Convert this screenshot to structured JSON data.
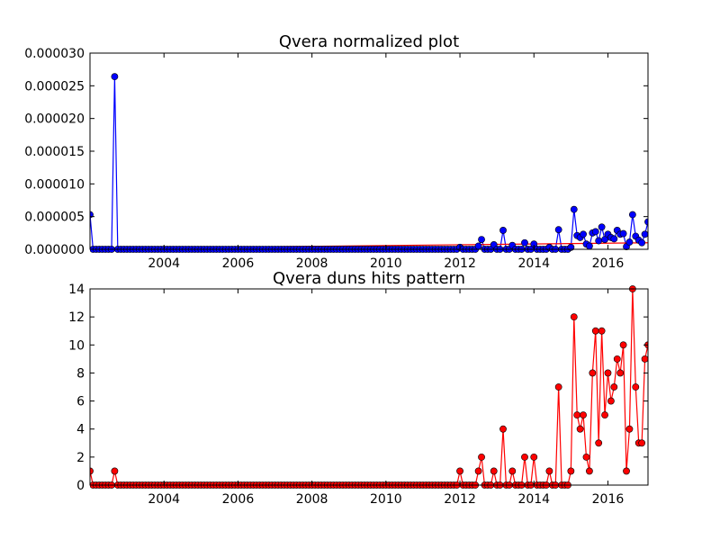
{
  "chart_data": [
    {
      "type": "line",
      "title": "Qvera normalized plot",
      "xlabel": "",
      "ylabel": "",
      "x_tick_labels": [
        "2004",
        "2006",
        "2008",
        "2010",
        "2012",
        "2014",
        "2016"
      ],
      "y_tick_labels": [
        "0.000000",
        "0.000005",
        "0.000010",
        "0.000015",
        "0.000020",
        "0.000025",
        "0.000030"
      ],
      "xlim": [
        "2002-01-01",
        "2017-02-01"
      ],
      "ylim": [
        0,
        3e-05
      ],
      "grid": false,
      "line_color": "#0000ff",
      "marker_color": "#0000ff",
      "trend_color": "#ff0000",
      "series": [
        {
          "x": [
            "2002-01",
            "2002-02",
            "2002-03",
            "2002-04",
            "2002-05",
            "2002-06",
            "2002-07",
            "2002-08",
            "2002-09",
            "2002-10",
            "2002-11",
            "2002-12",
            "2003-01",
            "2012-01",
            "2012-07",
            "2012-08",
            "2012-12",
            "2013-01",
            "2013-03",
            "2013-06",
            "2013-10",
            "2014-01",
            "2014-04",
            "2014-06",
            "2014-09",
            "2014-11",
            "2015-01",
            "2015-02",
            "2015-03",
            "2015-04",
            "2015-05",
            "2015-06",
            "2015-07",
            "2015-08",
            "2015-09",
            "2015-10",
            "2015-11",
            "2015-12",
            "2016-01",
            "2016-02",
            "2016-03",
            "2016-04",
            "2016-05",
            "2016-06",
            "2016-07",
            "2016-08",
            "2016-09",
            "2016-10",
            "2016-11",
            "2016-12",
            "2017-01",
            "2017-02"
          ],
          "values": [
            5.3e-06,
            0,
            0,
            0,
            0,
            0,
            0,
            0,
            2.64e-05,
            0,
            0,
            0,
            0,
            3e-07,
            5e-07,
            1.5e-06,
            7e-07,
            0,
            2.9e-06,
            6e-07,
            1e-06,
            8e-07,
            0,
            3e-07,
            3e-06,
            0,
            3e-07,
            6.1e-06,
            2.1e-06,
            1.8e-06,
            2.3e-06,
            8e-07,
            5e-07,
            2.5e-06,
            2.7e-06,
            1.3e-06,
            3.4e-06,
            1.5e-06,
            2.3e-06,
            1.8e-06,
            1.6e-06,
            2.9e-06,
            2.3e-06,
            2.4e-06,
            4e-07,
            1.1e-06,
            5.3e-06,
            2e-06,
            1.4e-06,
            1e-06,
            2.3e-06,
            4.2e-06
          ]
        }
      ],
      "trend": {
        "x": [
          "2002-01",
          "2017-02"
        ],
        "values": [
          1e-07,
          1e-06
        ]
      }
    },
    {
      "type": "line",
      "title": "Qvera duns hits pattern",
      "xlabel": "",
      "ylabel": "",
      "x_tick_labels": [
        "2004",
        "2006",
        "2008",
        "2010",
        "2012",
        "2014",
        "2016"
      ],
      "y_tick_labels": [
        "0",
        "2",
        "4",
        "6",
        "8",
        "10",
        "12",
        "14"
      ],
      "xlim": [
        "2002-01-01",
        "2017-02-01"
      ],
      "ylim": [
        0,
        14
      ],
      "grid": false,
      "line_color": "#ff0000",
      "marker_color": "#ff0000",
      "series": [
        {
          "x": [
            "2012-01",
            "2012-07",
            "2012-08",
            "2012-12",
            "2013-03",
            "2013-06",
            "2013-10",
            "2014-01",
            "2014-06",
            "2014-09",
            "2015-01",
            "2015-02",
            "2015-03",
            "2015-04",
            "2015-05",
            "2015-06",
            "2015-07",
            "2015-08",
            "2015-09",
            "2015-10",
            "2015-11",
            "2015-12",
            "2016-01",
            "2016-02",
            "2016-03",
            "2016-04",
            "2016-05",
            "2016-06",
            "2016-07",
            "2016-08",
            "2016-09",
            "2016-10",
            "2016-11",
            "2016-12",
            "2017-01",
            "2017-02"
          ],
          "values": [
            1,
            1,
            2,
            1,
            4,
            1,
            2,
            2,
            1,
            7,
            1,
            12,
            5,
            4,
            5,
            2,
            1,
            8,
            11,
            3,
            11,
            5,
            8,
            6,
            7,
            9,
            8,
            10,
            1,
            4,
            14,
            7,
            3,
            3,
            9,
            10
          ],
          "baseline_values": {
            "2002-01": 1,
            "2002-09": 1
          }
        }
      ]
    }
  ]
}
